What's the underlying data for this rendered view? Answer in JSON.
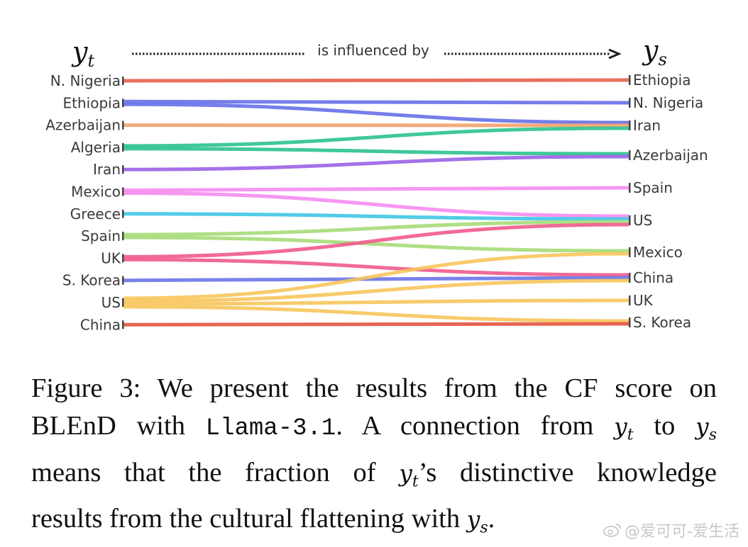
{
  "figure": {
    "left_header": {
      "base": "y",
      "sub": "t"
    },
    "right_header": {
      "base": "y",
      "sub": "s"
    },
    "arrow_text": "is influenced by",
    "left_labels": [
      "N. Nigeria",
      "Ethiopia",
      "Azerbaijan",
      "Algeria",
      "Iran",
      "Mexico",
      "Greece",
      "Spain",
      "UK",
      "S. Korea",
      "US",
      "China"
    ],
    "right_labels": [
      "Ethiopia",
      "N. Nigeria",
      "Iran",
      "Azerbaijan",
      "Spain",
      "US",
      "Mexico",
      "China",
      "UK",
      "S. Korea"
    ],
    "colors": {
      "N. Nigeria": "#e8604c",
      "Ethiopia": "#6670e8",
      "Azerbaijan": "#f2a26a",
      "Algeria": "#2bc28f",
      "Iran": "#9a62e8",
      "Mexico": "#f58cf0",
      "Greece": "#3fc6e6",
      "Spain": "#a6dc78",
      "UK": "#ef5a8c",
      "S. Korea": "#6a74e8",
      "US": "#f7c55c",
      "China": "#e3543f"
    },
    "connections": [
      {
        "from": "N. Nigeria",
        "to": "Ethiopia"
      },
      {
        "from": "Ethiopia",
        "to": "N. Nigeria"
      },
      {
        "from": "Ethiopia",
        "to": "Iran"
      },
      {
        "from": "Azerbaijan",
        "to": "Iran"
      },
      {
        "from": "Algeria",
        "to": "Iran"
      },
      {
        "from": "Algeria",
        "to": "Azerbaijan"
      },
      {
        "from": "Iran",
        "to": "Azerbaijan"
      },
      {
        "from": "Mexico",
        "to": "Spain"
      },
      {
        "from": "Mexico",
        "to": "US"
      },
      {
        "from": "Greece",
        "to": "US"
      },
      {
        "from": "Spain",
        "to": "US"
      },
      {
        "from": "Spain",
        "to": "Mexico"
      },
      {
        "from": "UK",
        "to": "US"
      },
      {
        "from": "UK",
        "to": "China"
      },
      {
        "from": "S. Korea",
        "to": "China"
      },
      {
        "from": "US",
        "to": "Mexico"
      },
      {
        "from": "US",
        "to": "China"
      },
      {
        "from": "US",
        "to": "UK"
      },
      {
        "from": "US",
        "to": "S. Korea"
      },
      {
        "from": "China",
        "to": "S. Korea"
      }
    ]
  },
  "caption": {
    "lines": [
      "Figure 3: We present the results from the CF score on",
      [
        "BLEnD with ",
        {
          "code": "Llama-3.1"
        },
        ". A connection from ",
        {
          "math": "y",
          "sub": "t"
        },
        " to ",
        {
          "math": "y",
          "sub": "s"
        }
      ],
      [
        "means that the fraction of ",
        {
          "math": "y",
          "sub": "t"
        },
        "’s distinctive knowledge"
      ],
      [
        "results from the cultural flattening with ",
        {
          "math": "y",
          "sub": "s"
        },
        "."
      ]
    ]
  },
  "watermark": {
    "text": "@爱可可-爱生活",
    "icon": "weibo-icon"
  }
}
